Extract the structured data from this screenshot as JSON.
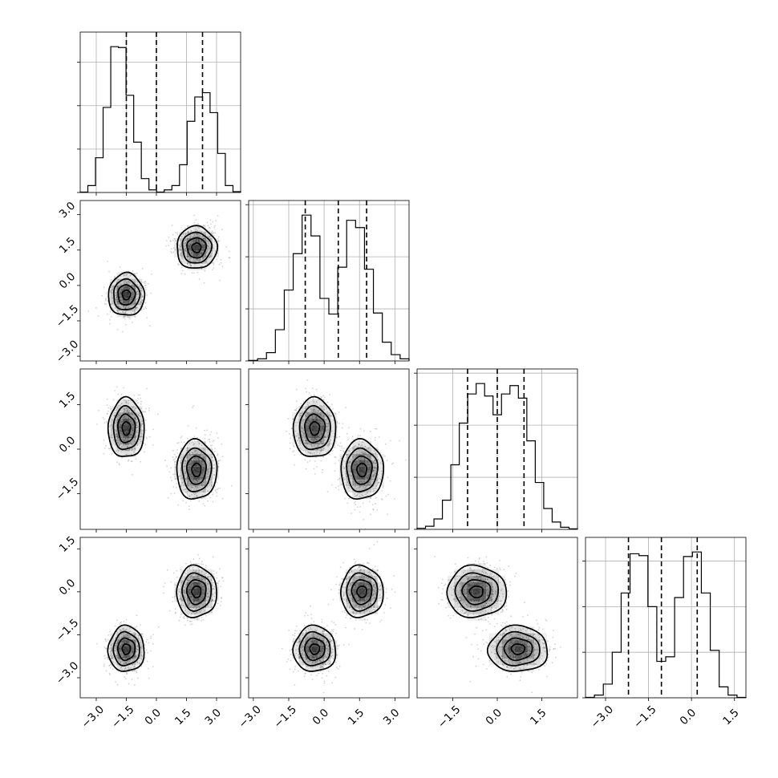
{
  "chart_data": {
    "type": "corner",
    "grid": true,
    "colors": {
      "line": "#000000",
      "points": "#808080",
      "density": "#000000",
      "grid": "#b0b0b0"
    },
    "parameters": [
      {
        "range": [
          -3.8,
          4.2
        ],
        "ticks": [
          -3.0,
          -1.5,
          0.0,
          1.5,
          3.0
        ],
        "tick_labels": [
          "−3.0",
          "−1.5",
          "0.0",
          "1.5",
          "3.0"
        ],
        "quantiles": [
          -1.5,
          0.0,
          2.3
        ],
        "histogram": [
          0.5,
          8,
          40,
          98,
          168,
          167,
          112,
          58,
          16,
          3,
          0.5,
          3,
          8,
          32,
          82,
          110,
          115,
          92,
          45,
          8,
          1
        ]
      },
      {
        "range": [
          -3.2,
          3.6
        ],
        "ticks": [
          -3.0,
          -1.5,
          0.0,
          1.5,
          3.0
        ],
        "tick_labels": [
          "−3.0",
          "−1.5",
          "0.0",
          "1.5",
          "3.0"
        ],
        "quantiles": [
          -0.8,
          0.6,
          1.8
        ],
        "histogram": [
          0.5,
          2,
          8,
          30,
          68,
          103,
          140,
          120,
          60,
          45,
          90,
          135,
          128,
          88,
          46,
          18,
          6,
          2
        ]
      },
      {
        "range": [
          -2.7,
          2.7
        ],
        "ticks": [
          -1.5,
          0.0,
          1.5
        ],
        "tick_labels": [
          "−1.5",
          "0.0",
          "1.5"
        ],
        "quantiles": [
          -1.0,
          0.0,
          0.9
        ],
        "histogram": [
          1,
          3,
          10,
          28,
          62,
          102,
          130,
          140,
          128,
          110,
          130,
          138,
          126,
          85,
          45,
          20,
          7,
          2,
          0.5
        ]
      },
      {
        "range": [
          -3.7,
          1.9
        ],
        "ticks": [
          -3.0,
          -1.5,
          0.0,
          1.5
        ],
        "tick_labels": [
          "−3.0",
          "−1.5",
          "0.0",
          "1.5"
        ],
        "quantiles": [
          -2.2,
          -1.05,
          0.2
        ],
        "histogram": [
          0.5,
          3,
          15,
          50,
          115,
          158,
          156,
          100,
          40,
          45,
          110,
          155,
          160,
          115,
          52,
          12,
          3,
          0.5
        ]
      }
    ],
    "modes": [
      {
        "center": [
          -1.5,
          -0.4,
          0.7,
          -2.0
        ],
        "sigma": [
          0.45,
          0.45,
          0.5,
          0.4
        ]
      },
      {
        "center": [
          2.0,
          1.6,
          -0.7,
          0.0
        ],
        "sigma": [
          0.5,
          0.45,
          0.5,
          0.45
        ]
      }
    ]
  }
}
